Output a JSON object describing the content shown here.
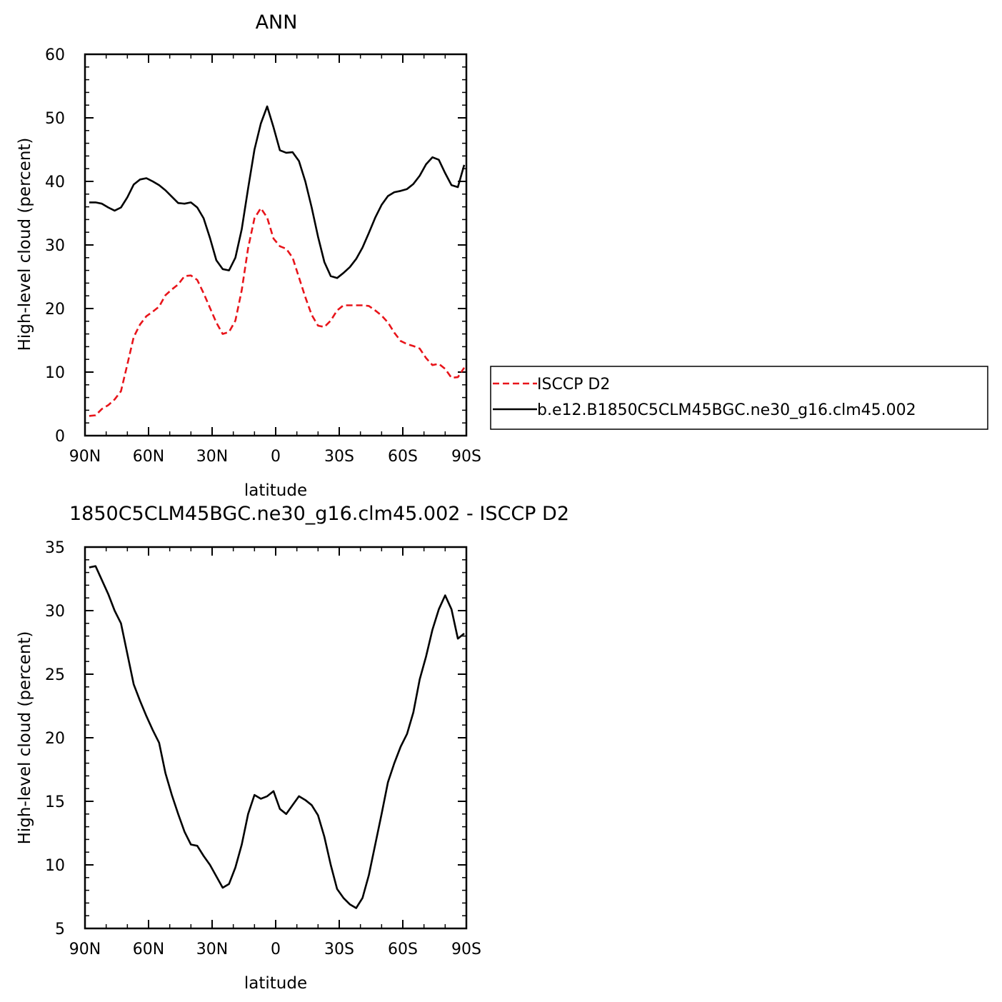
{
  "chart_data": [
    {
      "type": "line",
      "title": "ANN",
      "xlabel": "latitude",
      "ylabel": "High-level cloud (percent)",
      "xlim": [
        -90,
        90
      ],
      "ylim": [
        0,
        60
      ],
      "x_ticks": [
        -90,
        -60,
        -30,
        0,
        30,
        60,
        90
      ],
      "x_tick_labels": [
        "90N",
        "60N",
        "30N",
        "0",
        "30S",
        "60S",
        "90S"
      ],
      "y_ticks": [
        0,
        10,
        20,
        30,
        40,
        50,
        60
      ],
      "y_tick_labels": [
        "0",
        "10",
        "20",
        "30",
        "40",
        "50",
        "60"
      ],
      "legend_position": "right",
      "series": [
        {
          "name": "ISCCP D2",
          "color": "#e8141a",
          "dash": "dashed",
          "x": [
            -88,
            -85,
            -82,
            -79,
            -76,
            -73,
            -70,
            -67,
            -64,
            -61,
            -58,
            -55,
            -52,
            -49,
            -46,
            -43,
            -40,
            -37,
            -34,
            -31,
            -28,
            -25,
            -22,
            -19,
            -16,
            -13,
            -10,
            -7,
            -4,
            -1,
            2,
            5,
            8,
            11,
            14,
            17,
            20,
            23,
            26,
            29,
            32,
            35,
            38,
            41,
            44,
            47,
            50,
            53,
            56,
            59,
            62,
            65,
            68,
            71,
            74,
            77,
            80,
            83,
            86,
            89
          ],
          "values": [
            3.1,
            3.2,
            4.2,
            4.8,
            5.7,
            7,
            11.2,
            15.5,
            17.5,
            18.8,
            19.5,
            20.3,
            22.1,
            23,
            23.8,
            25.1,
            25.2,
            24.5,
            22.4,
            20.1,
            17.8,
            16,
            16.3,
            18.1,
            22.9,
            29.5,
            34.2,
            35.8,
            34.3,
            31,
            29.8,
            29.4,
            28,
            24.9,
            21.8,
            19,
            17.3,
            17.1,
            18.1,
            19.7,
            20.5,
            20.5,
            20.5,
            20.5,
            20.4,
            19.7,
            18.9,
            17.8,
            16.2,
            14.9,
            14.4,
            14.1,
            13.7,
            12.2,
            11.1,
            11.3,
            10.5,
            9.1,
            9.2,
            10.7
          ]
        },
        {
          "name": "b.e12.B1850C5CLM45BGC.ne30_g16.clm45.002",
          "color": "#000000",
          "dash": "solid",
          "x": [
            -88,
            -85,
            -82,
            -79,
            -76,
            -73,
            -70,
            -67,
            -64,
            -61,
            -58,
            -55,
            -52,
            -49,
            -46,
            -43,
            -40,
            -37,
            -34,
            -31,
            -28,
            -25,
            -22,
            -19,
            -16,
            -13,
            -10,
            -7,
            -4,
            -1,
            2,
            5,
            8,
            11,
            14,
            17,
            20,
            23,
            26,
            29,
            32,
            35,
            38,
            41,
            44,
            47,
            50,
            53,
            56,
            59,
            62,
            65,
            68,
            71,
            74,
            77,
            80,
            83,
            86,
            89
          ],
          "values": [
            36.7,
            36.7,
            36.5,
            35.9,
            35.4,
            35.9,
            37.5,
            39.5,
            40.3,
            40.5,
            40,
            39.4,
            38.6,
            37.6,
            36.6,
            36.5,
            36.7,
            35.9,
            34.2,
            31.1,
            27.6,
            26.2,
            26,
            28,
            32.5,
            38.9,
            45,
            49.1,
            51.8,
            48.5,
            44.9,
            44.5,
            44.6,
            43.2,
            40,
            35.9,
            31.3,
            27.3,
            25.1,
            24.8,
            25.6,
            26.5,
            27.8,
            29.6,
            31.9,
            34.3,
            36.3,
            37.7,
            38.3,
            38.5,
            38.8,
            39.6,
            40.9,
            42.7,
            43.8,
            43.4,
            41.3,
            39.4,
            39.1,
            42.6
          ]
        }
      ]
    },
    {
      "type": "line",
      "title": "1850C5CLM45BGC.ne30_g16.clm45.002 - ISCCP D2",
      "xlabel": "latitude",
      "ylabel": "High-level cloud (percent)",
      "xlim": [
        -90,
        90
      ],
      "ylim": [
        5,
        35
      ],
      "x_ticks": [
        -90,
        -60,
        -30,
        0,
        30,
        60,
        90
      ],
      "x_tick_labels": [
        "90N",
        "60N",
        "30N",
        "0",
        "30S",
        "60S",
        "90S"
      ],
      "y_ticks": [
        5,
        10,
        15,
        20,
        25,
        30,
        35
      ],
      "y_tick_labels": [
        "5",
        "10",
        "15",
        "20",
        "25",
        "30",
        "35"
      ],
      "series": [
        {
          "color": "#000000",
          "dash": "solid",
          "x": [
            -88,
            -85,
            -82,
            -79,
            -76,
            -73,
            -70,
            -67,
            -64,
            -61,
            -58,
            -55,
            -52,
            -49,
            -46,
            -43,
            -40,
            -37,
            -34,
            -31,
            -28,
            -25,
            -22,
            -19,
            -16,
            -13,
            -10,
            -7,
            -4,
            -1,
            2,
            5,
            8,
            11,
            14,
            17,
            20,
            23,
            26,
            29,
            32,
            35,
            38,
            41,
            44,
            47,
            50,
            53,
            56,
            59,
            62,
            65,
            68,
            71,
            74,
            77,
            80,
            83,
            86,
            89
          ],
          "values": [
            33.4,
            33.5,
            32.4,
            31.3,
            30,
            29,
            26.6,
            24.2,
            22.9,
            21.7,
            20.6,
            19.6,
            17.2,
            15.5,
            14,
            12.6,
            11.6,
            11.5,
            10.7,
            10,
            9.1,
            8.2,
            8.5,
            9.8,
            11.6,
            14,
            15.5,
            15.2,
            15.4,
            15.8,
            14.4,
            14,
            14.7,
            15.4,
            15.1,
            14.7,
            13.9,
            12.2,
            10,
            8.1,
            7.4,
            6.9,
            6.6,
            7.4,
            9.2,
            11.6,
            14,
            16.5,
            18,
            19.3,
            20.3,
            22,
            24.6,
            26.4,
            28.5,
            30.1,
            31.2,
            30.1,
            27.8,
            28.2
          ]
        }
      ]
    }
  ]
}
